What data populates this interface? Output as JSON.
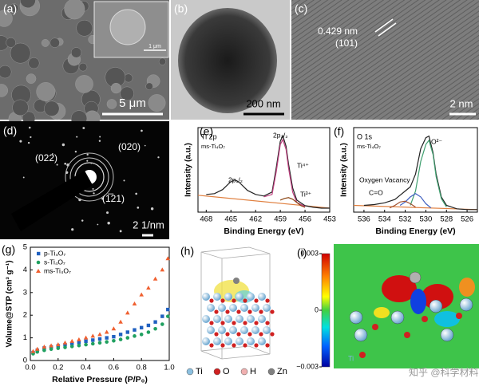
{
  "panels": {
    "a": {
      "label": "(a)",
      "inset_scale": "1 μm",
      "scale": "5 μm"
    },
    "b": {
      "label": "(b)",
      "scale": "200 nm"
    },
    "c": {
      "label": "(c)",
      "spacing": "0.429 nm",
      "plane": "(101)",
      "scale": "2 nm"
    },
    "d": {
      "label": "(d)",
      "rings": [
        "(022)",
        "(020)",
        "(1̅21)"
      ],
      "scale": "2 1/nm"
    },
    "h": {
      "label": "(h)",
      "legend": [
        {
          "name": "Ti",
          "color": "#8cc0e0"
        },
        {
          "name": "O",
          "color": "#d02020"
        },
        {
          "name": "H",
          "color": "#f0b0b0"
        },
        {
          "name": "Zn",
          "color": "#808080"
        }
      ]
    },
    "i": {
      "label": "(i)",
      "atom": "Ti",
      "colorbar": {
        "lim": [
          -0.003,
          0.003
        ],
        "ticks": [
          0.003,
          0,
          {
            "value": -0.003,
            "label": "−0.003"
          }
        ]
      }
    }
  },
  "watermark": "知乎 @科学材料站",
  "chart_data": [
    {
      "type": "line",
      "panel": "(e)",
      "title": "Ti 2p",
      "subtitle": "ms-Ti₄O₇",
      "x_label": "Binding Energy (eV)",
      "y_label": "Intensity (a.u.)",
      "xlim": [
        469,
        453
      ],
      "xticks": [
        468,
        465,
        462,
        459,
        456,
        453
      ],
      "ylim": [
        0,
        105
      ],
      "annotations": [
        "2p₃/₂",
        "2p₁/₂",
        "Ti⁴⁺",
        "Ti³⁺"
      ],
      "series": [
        {
          "color": "#e08040",
          "x": [
            469,
            453
          ],
          "values": [
            21,
            5
          ]
        },
        {
          "color": "#222222",
          "x": [
            468,
            467,
            466,
            465,
            464.5,
            464,
            463,
            462,
            461,
            460,
            459.5,
            459,
            458.7,
            458.3,
            458,
            457.5,
            457,
            456,
            455,
            454,
            453
          ],
          "values": [
            22,
            23,
            28,
            38,
            40,
            37,
            27,
            22,
            20,
            25,
            55,
            88,
            95,
            82,
            60,
            30,
            15,
            8,
            6,
            5,
            5
          ]
        },
        {
          "color": "#c04080",
          "x": [
            461,
            460,
            459.5,
            459,
            458.7,
            458.3,
            458,
            457.5,
            457,
            456
          ],
          "values": [
            19,
            22,
            50,
            84,
            90,
            78,
            55,
            25,
            12,
            7
          ]
        },
        {
          "color": "#8b4513",
          "x": [
            459,
            458.5,
            458,
            457.5,
            457,
            456.5,
            456
          ],
          "values": [
            15,
            17,
            18,
            16,
            12,
            8,
            6
          ]
        }
      ]
    },
    {
      "type": "line",
      "panel": "(f)",
      "title": "O 1s",
      "subtitle": "ms-Ti₄O₇",
      "x_label": "Binding Energy (eV)",
      "y_label": "Intensity (a.u.)",
      "xlim": [
        537,
        525
      ],
      "xticks": [
        536,
        534,
        532,
        530,
        528,
        526
      ],
      "ylim": [
        0,
        100
      ],
      "annotations": [
        "O²⁻",
        "Oxygen Vacancy",
        "C=O"
      ],
      "series": [
        {
          "color": "#e08040",
          "x": [
            537,
            525
          ],
          "values": [
            8,
            3
          ]
        },
        {
          "color": "#222222",
          "x": [
            536,
            535,
            534,
            533,
            532.5,
            532,
            531.5,
            531,
            530.5,
            530,
            529.7,
            529.3,
            529,
            528.5,
            528,
            527,
            526,
            525
          ],
          "values": [
            8,
            9,
            11,
            15,
            20,
            25,
            30,
            45,
            75,
            88,
            90,
            70,
            45,
            18,
            8,
            4,
            3,
            3
          ]
        },
        {
          "color": "#40a070",
          "x": [
            531.5,
            531,
            530.5,
            530,
            529.7,
            529.3,
            529,
            528.5,
            528
          ],
          "values": [
            8,
            25,
            60,
            80,
            85,
            68,
            42,
            16,
            6
          ]
        },
        {
          "color": "#4060c0",
          "x": [
            532.5,
            532,
            531.5,
            531,
            530.5,
            530,
            529.5
          ],
          "values": [
            8,
            12,
            18,
            22,
            18,
            10,
            5
          ]
        },
        {
          "color": "#a05030",
          "x": [
            533.5,
            533,
            532.5,
            532,
            531.5,
            531
          ],
          "values": [
            5,
            8,
            12,
            13,
            10,
            6
          ]
        }
      ]
    },
    {
      "type": "scatter",
      "panel": "(g)",
      "x_label": "Relative Pressure (P/P₀)",
      "y_label": "Volume@STP (cm³ g⁻¹)",
      "xlim": [
        0,
        1
      ],
      "xticks": [
        {
          "value": 0,
          "label": "0.0"
        },
        0.2,
        0.4,
        0.6,
        0.8,
        {
          "value": 1,
          "label": "1.0"
        }
      ],
      "ylim": [
        0,
        5
      ],
      "yticks": [
        0,
        1,
        2,
        3,
        4,
        5
      ],
      "x": [
        0.02,
        0.05,
        0.1,
        0.15,
        0.2,
        0.25,
        0.3,
        0.35,
        0.4,
        0.45,
        0.5,
        0.55,
        0.6,
        0.65,
        0.7,
        0.75,
        0.8,
        0.85,
        0.9,
        0.95,
        0.99
      ],
      "series": [
        {
          "name": "p-Ti₄O₇",
          "color": "#2060c0",
          "marker": "square",
          "values": [
            0.35,
            0.45,
            0.55,
            0.6,
            0.65,
            0.7,
            0.75,
            0.8,
            0.85,
            0.9,
            0.95,
            1.0,
            1.05,
            1.15,
            1.25,
            1.35,
            1.45,
            1.55,
            1.7,
            1.95,
            2.25
          ]
        },
        {
          "name": "s-Ti₄O₇",
          "color": "#20a060",
          "marker": "circle",
          "values": [
            0.3,
            0.38,
            0.45,
            0.5,
            0.54,
            0.58,
            0.62,
            0.66,
            0.7,
            0.74,
            0.78,
            0.82,
            0.87,
            0.93,
            1.0,
            1.08,
            1.15,
            1.25,
            1.4,
            1.6,
            1.95
          ]
        },
        {
          "name": "ms-Ti₄O₇",
          "color": "#f06030",
          "marker": "triangle",
          "values": [
            0.4,
            0.5,
            0.6,
            0.65,
            0.7,
            0.78,
            0.85,
            0.92,
            1.0,
            1.08,
            1.15,
            1.25,
            1.4,
            1.7,
            2.1,
            2.5,
            2.9,
            3.2,
            3.6,
            4.0,
            4.5
          ]
        }
      ]
    }
  ]
}
